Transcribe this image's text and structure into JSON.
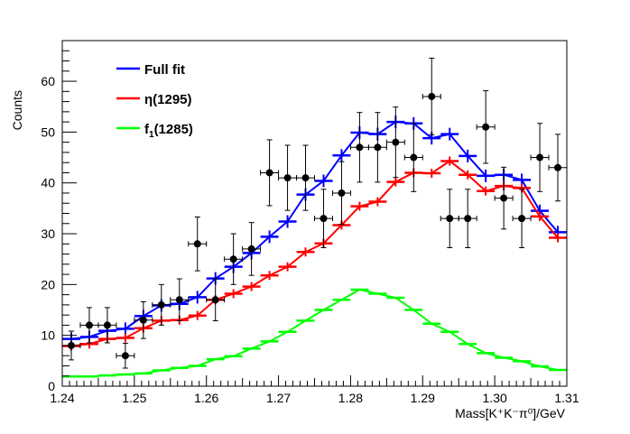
{
  "chart_data": {
    "type": "line",
    "title": "",
    "xlabel": "Mass[K⁺K⁻π⁰]/GeV",
    "ylabel": "Counts",
    "xlim": [
      1.24,
      1.31
    ],
    "ylim": [
      0,
      68
    ],
    "x_ticks": [
      "1.24",
      "1.25",
      "1.26",
      "1.27",
      "1.28",
      "1.29",
      "1.30",
      "1.31"
    ],
    "y_ticks": [
      "0",
      "10",
      "20",
      "30",
      "40",
      "50",
      "60"
    ],
    "bin_width": 0.0025,
    "x": [
      1.24125,
      1.24375,
      1.24625,
      1.24875,
      1.25125,
      1.25375,
      1.25625,
      1.25875,
      1.26125,
      1.26375,
      1.26625,
      1.26875,
      1.27125,
      1.27375,
      1.27625,
      1.27875,
      1.28125,
      1.28375,
      1.28625,
      1.28875,
      1.29125,
      1.29375,
      1.29625,
      1.29875,
      1.30125,
      1.30375,
      1.30625,
      1.30875
    ],
    "data": {
      "name": "Data",
      "values": [
        8,
        12,
        12,
        6,
        13,
        16,
        17,
        28,
        17,
        25,
        27,
        42,
        41,
        41,
        33,
        38,
        47,
        47,
        48,
        45,
        57,
        33,
        33,
        51,
        37,
        33,
        45,
        43
      ],
      "color": "#000000"
    },
    "series": [
      {
        "name": "Full fit",
        "color": "#0000ff",
        "values": [
          9.3,
          9.7,
          10.9,
          11.3,
          13.8,
          15.9,
          16.2,
          17.5,
          21.2,
          23.5,
          26.2,
          29.4,
          32.4,
          37.7,
          40.4,
          45.4,
          49.9,
          49.6,
          52.0,
          51.7,
          48.8,
          49.6,
          45.3,
          41.4,
          41.6,
          40.6,
          34.5,
          30.3
        ]
      },
      {
        "name": "η(1295)",
        "color": "#ff0000",
        "values": [
          7.9,
          8.3,
          9.3,
          9.5,
          11.4,
          12.9,
          13.0,
          13.9,
          17.0,
          18.2,
          19.6,
          21.8,
          23.5,
          26.4,
          28.1,
          31.7,
          35.4,
          36.3,
          40.2,
          42.0,
          41.9,
          44.3,
          41.6,
          38.4,
          39.4,
          39.0,
          33.4,
          29.2
        ]
      },
      {
        "name": "f1(1285)",
        "color": "#00ff00",
        "values": [
          1.9,
          1.9,
          2.1,
          2.3,
          2.5,
          3.1,
          3.6,
          4.0,
          5.3,
          5.9,
          7.4,
          8.8,
          10.7,
          12.9,
          15.0,
          17.0,
          19.0,
          18.2,
          17.4,
          15.0,
          12.3,
          10.7,
          8.3,
          6.5,
          5.6,
          4.9,
          3.9,
          3.2
        ]
      }
    ],
    "legend": {
      "placement": "top-left",
      "entries": [
        {
          "label": "Full fit",
          "color": "#0000ff"
        },
        {
          "label_main": "η(1295)",
          "color": "#ff0000"
        },
        {
          "label_main": "f",
          "label_sub": "1",
          "label_rest": "(1285)",
          "color": "#00ff00"
        }
      ]
    },
    "grid": false
  }
}
